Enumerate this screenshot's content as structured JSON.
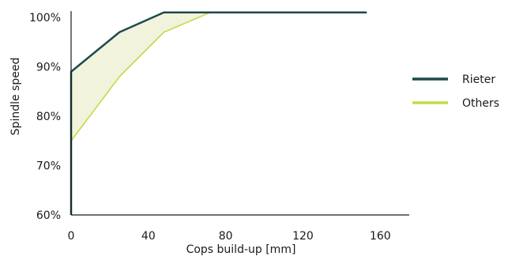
{
  "chart_data": {
    "type": "line",
    "title": "",
    "xlabel": "Cops build-up [mm]",
    "ylabel": "Spindle speed",
    "xlim": [
      0,
      175
    ],
    "ylim": [
      60,
      100
    ],
    "x_ticks": [
      {
        "value": 0,
        "label": "0"
      },
      {
        "value": 40,
        "label": "40"
      },
      {
        "value": 80,
        "label": "80"
      },
      {
        "value": 120,
        "label": "120"
      },
      {
        "value": 160,
        "label": "160"
      }
    ],
    "y_ticks": [
      {
        "value": 100,
        "label": "100%"
      },
      {
        "value": 90,
        "label": "90%"
      },
      {
        "value": 80,
        "label": "80%"
      },
      {
        "value": 70,
        "label": "70%"
      },
      {
        "value": 60,
        "label": "60%"
      }
    ],
    "fill_between": {
      "upper": "Rieter",
      "lower": "Others",
      "color": "#f2f3dc"
    },
    "series": [
      {
        "name": "Rieter",
        "color": "#1d4a4e",
        "points": [
          [
            0,
            60
          ],
          [
            0,
            89
          ],
          [
            25,
            97
          ],
          [
            48,
            101
          ],
          [
            153,
            101
          ]
        ]
      },
      {
        "name": "Others",
        "color": "#c8d84a",
        "points": [
          [
            0,
            60
          ],
          [
            0,
            75
          ],
          [
            25,
            88
          ],
          [
            48,
            97
          ],
          [
            72,
            101
          ],
          [
            153,
            101
          ]
        ]
      }
    ],
    "legend": {
      "placement": "right"
    },
    "grid": false
  }
}
